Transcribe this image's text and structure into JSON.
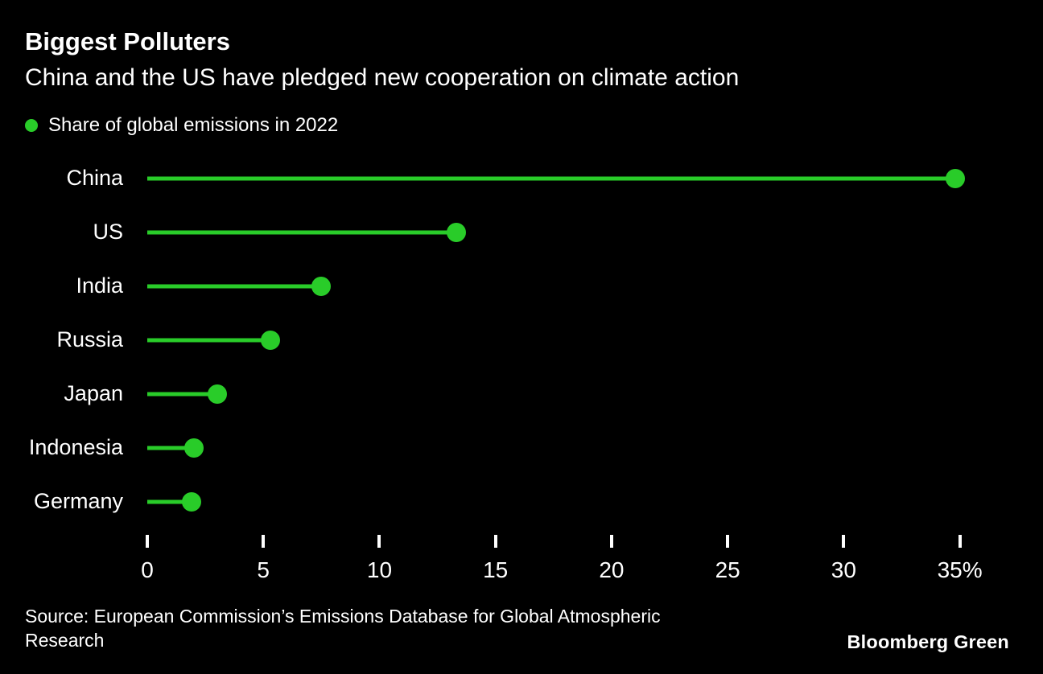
{
  "chart_data": {
    "type": "bar",
    "variant": "lollipop",
    "orientation": "horizontal",
    "title": "Biggest Polluters",
    "subtitle": "China and the US have pledged new cooperation on climate action",
    "legend_label": "Share of global emissions in 2022",
    "categories": [
      "China",
      "US",
      "India",
      "Russia",
      "Japan",
      "Indonesia",
      "Germany"
    ],
    "values": [
      34.8,
      13.3,
      7.5,
      5.3,
      3.0,
      2.0,
      1.9
    ],
    "xlabel": "",
    "ylabel": "",
    "xlim": [
      0,
      36.4
    ],
    "xticks": [
      0,
      5,
      10,
      15,
      20,
      25,
      30,
      35
    ],
    "xtick_labels": [
      "0",
      "5",
      "10",
      "15",
      "20",
      "25",
      "30",
      "35%"
    ],
    "grid": false,
    "legend_position": "top-left"
  },
  "footer": {
    "source_lines": [
      "Source: European Commission’s Emissions Database for Global Atmospheric",
      "Research"
    ],
    "brand": "Bloomberg Green"
  },
  "colors": {
    "background": "#000000",
    "text": "#ffffff",
    "accent": "#29cc29"
  }
}
